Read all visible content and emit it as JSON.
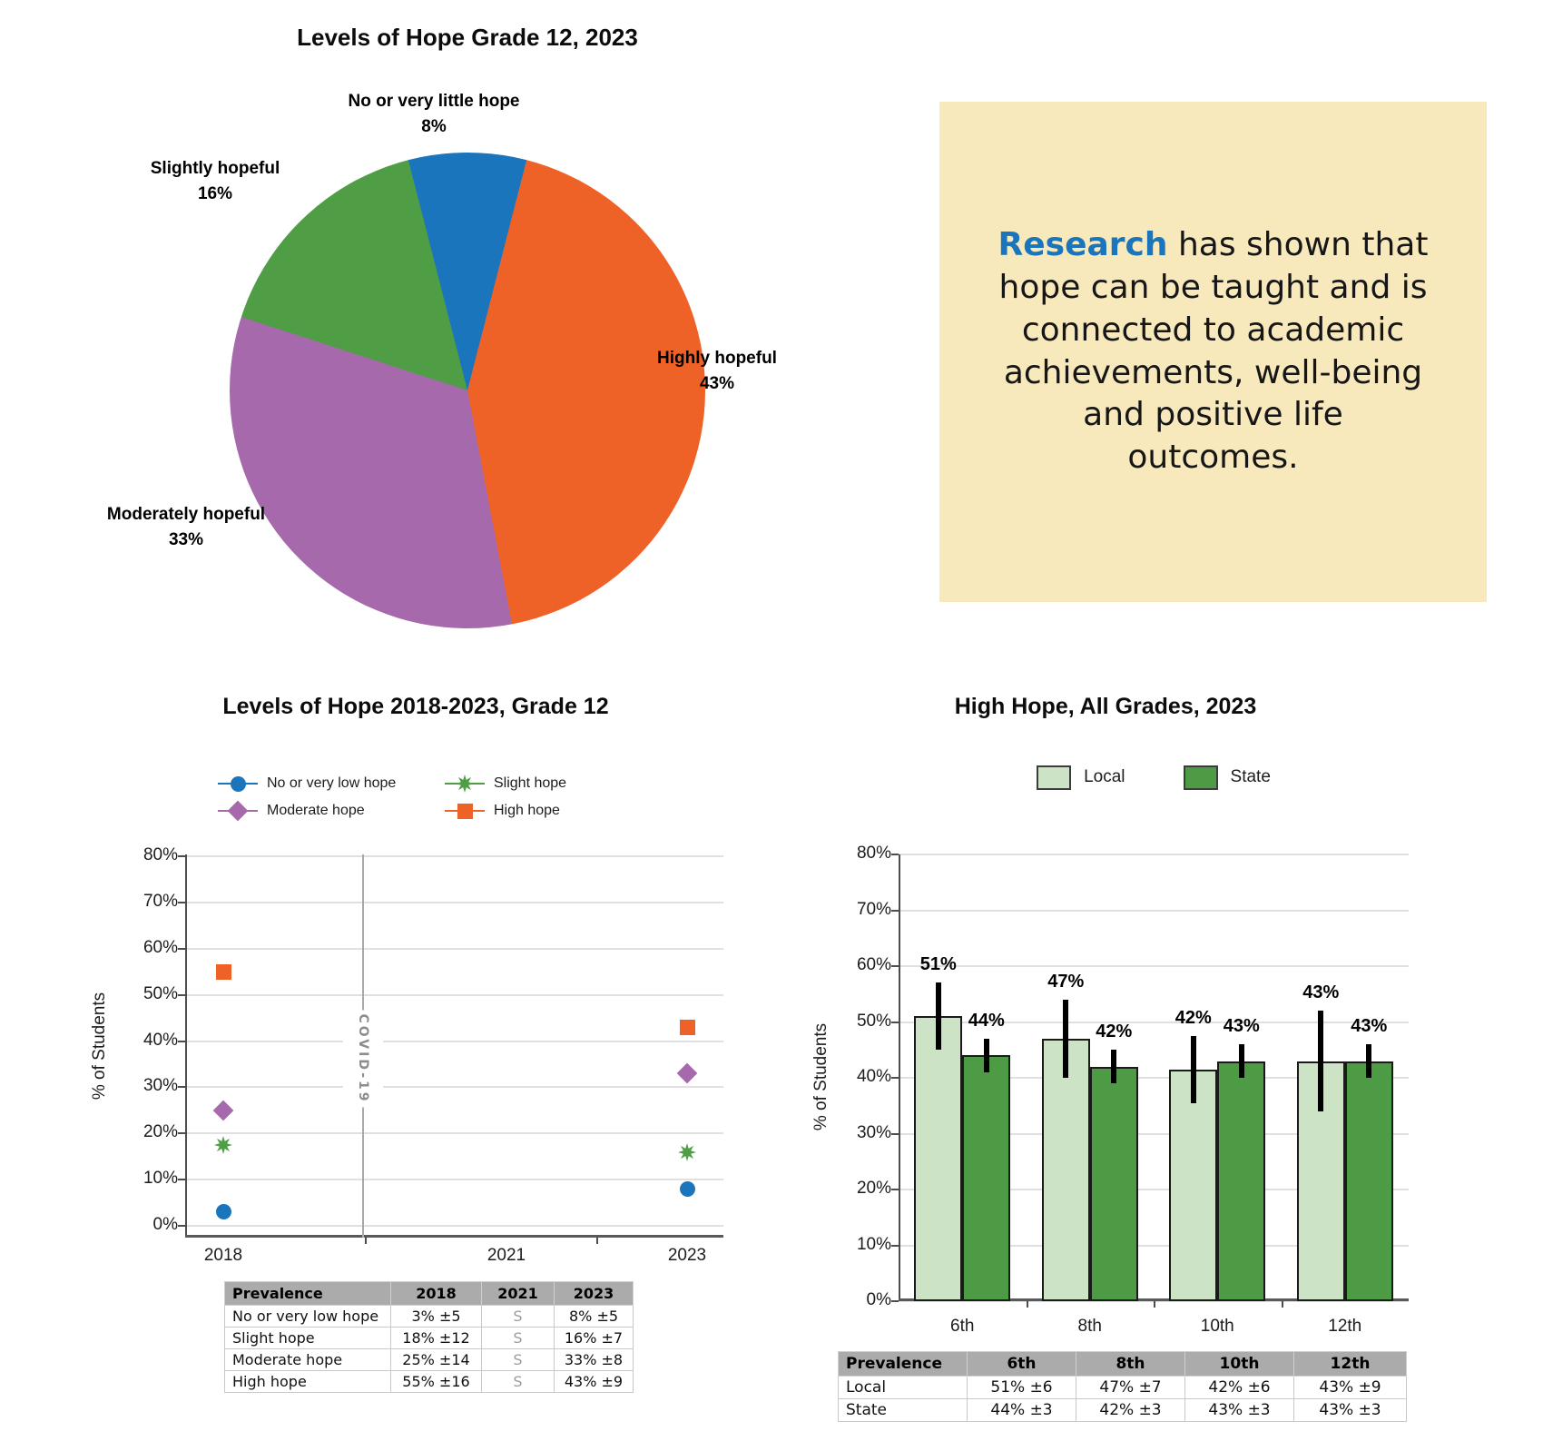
{
  "research_box": {
    "highlight": "Research",
    "text_after_highlight": " has shown that hope can be taught and is connected to academic achievements, well-being and positive life outcomes.",
    "bg_color": "#F7E9BC",
    "highlight_color": "#1B75BC"
  },
  "chart_data": [
    {
      "type": "pie",
      "title": "Levels of Hope Grade 12, 2023",
      "start_angle_deg": -14.4,
      "direction": "clockwise",
      "slices": [
        {
          "label": "No or very little hope",
          "pct": "8%",
          "value": 8,
          "color": "#1B75BC"
        },
        {
          "label": "Highly hopeful",
          "pct": "43%",
          "value": 43,
          "color": "#EF6227"
        },
        {
          "label": "Moderately hopeful",
          "pct": "33%",
          "value": 33,
          "color": "#A669AB"
        },
        {
          "label": "Slightly hopeful",
          "pct": "16%",
          "value": 16,
          "color": "#4F9D45"
        }
      ]
    },
    {
      "type": "scatter",
      "title": "Levels of Hope 2018-2023, Grade 12",
      "ylabel": "% of Students",
      "ylim": [
        0,
        80
      ],
      "ytick_step": 10,
      "x_ticks": [
        "2018",
        "2021",
        "2023"
      ],
      "annotation": {
        "label": "COVID-19"
      },
      "legend": [
        {
          "name": "No or very low hope",
          "marker": "circle",
          "color": "#1B75BC"
        },
        {
          "name": "Slight hope",
          "marker": "star",
          "color": "#4F9D45"
        },
        {
          "name": "Moderate hope",
          "marker": "diamond",
          "color": "#A669AB"
        },
        {
          "name": "High hope",
          "marker": "square",
          "color": "#EF6227"
        }
      ],
      "series": [
        {
          "name": "No or very low hope",
          "marker": "circle",
          "color": "#1B75BC",
          "points": [
            {
              "x": "2018",
              "y": 3
            },
            {
              "x": "2023",
              "y": 8
            }
          ]
        },
        {
          "name": "Slight hope",
          "marker": "star",
          "color": "#4F9D45",
          "points": [
            {
              "x": "2018",
              "y": 17.5
            },
            {
              "x": "2023",
              "y": 16
            }
          ]
        },
        {
          "name": "Moderate hope",
          "marker": "diamond",
          "color": "#A669AB",
          "points": [
            {
              "x": "2018",
              "y": 25
            },
            {
              "x": "2023",
              "y": 33
            }
          ]
        },
        {
          "name": "High hope",
          "marker": "square",
          "color": "#EF6227",
          "points": [
            {
              "x": "2018",
              "y": 55
            },
            {
              "x": "2023",
              "y": 43
            }
          ]
        }
      ],
      "table": {
        "headers": [
          "Prevalence",
          "2018",
          "2021",
          "2023"
        ],
        "rows": [
          [
            "No or very low hope",
            "3% ±5",
            "S",
            "8% ±5"
          ],
          [
            "Slight hope",
            "18% ±12",
            "S",
            "16% ±7"
          ],
          [
            "Moderate hope",
            "25% ±14",
            "S",
            "33% ±8"
          ],
          [
            "High hope",
            "55% ±16",
            "S",
            "43% ±9"
          ]
        ]
      }
    },
    {
      "type": "bar",
      "title": "High Hope, All Grades, 2023",
      "ylabel": "% of Students",
      "ylim": [
        0,
        80
      ],
      "ytick_step": 10,
      "categories": [
        "6th",
        "8th",
        "10th",
        "12th"
      ],
      "series": [
        {
          "name": "Local",
          "color": "#CCE3C6",
          "values": [
            51,
            47,
            41.5,
            43
          ],
          "labels": [
            "51%",
            "47%",
            "42%",
            "43%"
          ],
          "err_margin": [
            6,
            7,
            6,
            9
          ]
        },
        {
          "name": "State",
          "color": "#4E9B45",
          "values": [
            44,
            42,
            43,
            43
          ],
          "labels": [
            "44%",
            "42%",
            "43%",
            "43%"
          ],
          "err_margin": [
            3,
            3,
            3,
            3
          ]
        }
      ],
      "table": {
        "headers": [
          "Prevalence",
          "6th",
          "8th",
          "10th",
          "12th"
        ],
        "rows": [
          [
            "Local",
            "51% ±6",
            "47% ±7",
            "42% ±6",
            "43% ±9"
          ],
          [
            "State",
            "44% ±3",
            "42% ±3",
            "43% ±3",
            "43% ±3"
          ]
        ]
      }
    }
  ]
}
